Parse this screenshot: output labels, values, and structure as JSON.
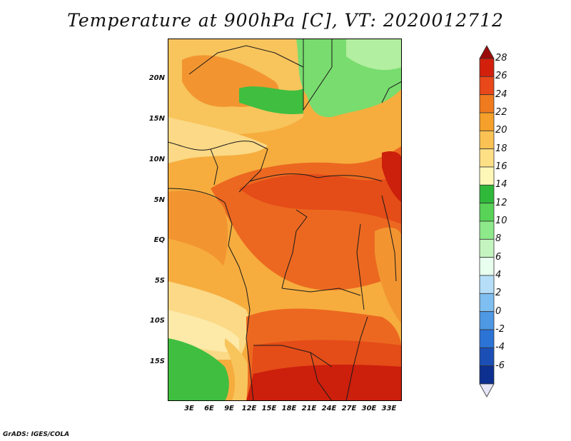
{
  "title": "Temperature at 900hPa [C], VT: 2020012712",
  "credit": "GrADS: IGES/COLA",
  "y_ticks": [
    "20N",
    "15N",
    "10N",
    "5N",
    "EQ",
    "5S",
    "10S",
    "15S"
  ],
  "x_ticks": [
    "3E",
    "6E",
    "9E",
    "12E",
    "15E",
    "18E",
    "21E",
    "24E",
    "27E",
    "30E",
    "33E"
  ],
  "colorbar": {
    "labels": [
      "28",
      "26",
      "24",
      "22",
      "20",
      "18",
      "16",
      "14",
      "12",
      "10",
      "8",
      "6",
      "4",
      "2",
      "0",
      "-2",
      "-4",
      "-6"
    ],
    "colors": [
      "#9b0a0a",
      "#d2200c",
      "#e8481a",
      "#f07a1e",
      "#f5a02a",
      "#fac254",
      "#fde085",
      "#fff7b8",
      "#2fb83a",
      "#58d257",
      "#8de98a",
      "#c4f5c0",
      "#e8fff0",
      "#b6def8",
      "#7fbef0",
      "#4e98e4",
      "#2c73d6",
      "#1b4fb6",
      "#0c2f90",
      "#0a1666"
    ]
  },
  "map_colors": {
    "deep_red": "#cc1f0c",
    "red": "#e44c18",
    "orange_red": "#ec6820",
    "orange": "#f29530",
    "light_orange": "#f6ad3e",
    "yellow_orange": "#f8c45c",
    "pale": "#fbd986",
    "pale_yellow": "#fde9a8",
    "green": "#3fbe40",
    "light_green": "#78dc6e",
    "pale_green": "#b2efa0"
  }
}
